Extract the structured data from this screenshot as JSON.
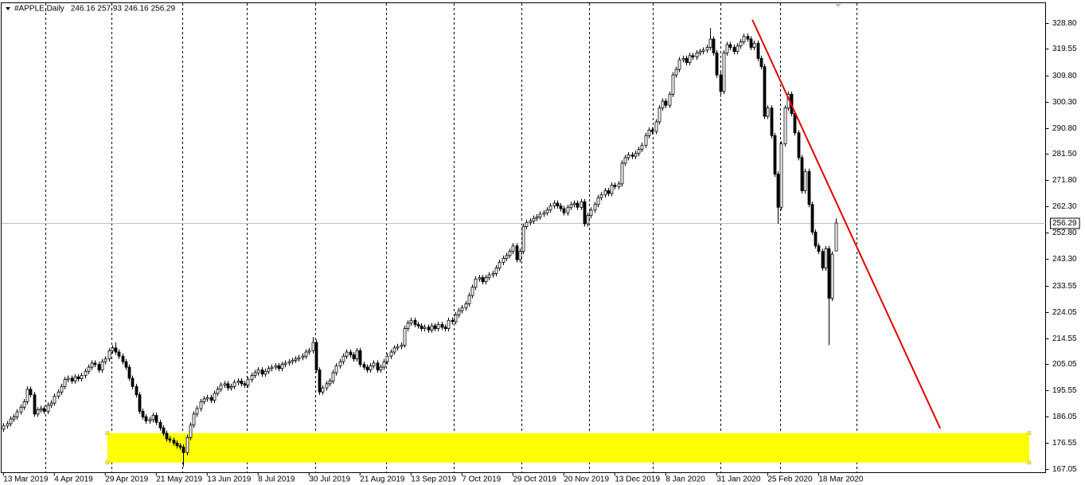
{
  "chart_data": {
    "type": "candlestick",
    "title": "#APPLE,Daily",
    "categories": [
      "13 Mar 2019",
      null,
      null,
      null,
      null,
      null,
      null,
      null,
      null,
      null,
      null,
      null,
      null,
      null,
      null,
      "4 Apr 2019",
      null,
      null,
      null,
      null,
      null,
      null,
      null,
      null,
      null,
      null,
      null,
      null,
      null,
      null,
      "29 Apr 2019",
      null,
      null,
      null,
      null,
      null,
      null,
      null,
      null,
      null,
      null,
      null,
      null,
      null,
      null,
      "21 May 2019",
      null,
      null,
      null,
      null,
      null,
      null,
      null,
      null,
      null,
      null,
      null,
      null,
      null,
      null,
      "13 Jun 2019",
      null,
      null,
      null,
      null,
      null,
      null,
      null,
      null,
      null,
      null,
      null,
      null,
      null,
      null,
      "8 Jul 2019",
      null,
      null,
      null,
      null,
      null,
      null,
      null,
      null,
      null,
      null,
      null,
      null,
      null,
      null,
      "30 Jul 2019",
      null,
      null,
      null,
      null,
      null,
      null,
      null,
      null,
      null,
      null,
      null,
      null,
      null,
      null,
      "21 Aug 2019",
      null,
      null,
      null,
      null,
      null,
      null,
      null,
      null,
      null,
      null,
      null,
      null,
      null,
      null,
      "13 Sep 2019",
      null,
      null,
      null,
      null,
      null,
      null,
      null,
      null,
      null,
      null,
      null,
      null,
      null,
      null,
      "7 Oct 2019",
      null,
      null,
      null,
      null,
      null,
      null,
      null,
      null,
      null,
      null,
      null,
      null,
      null,
      null,
      "29 Oct 2019",
      null,
      null,
      null,
      null,
      null,
      null,
      null,
      null,
      null,
      null,
      null,
      null,
      null,
      null,
      "20 Nov 2019",
      null,
      null,
      null,
      null,
      null,
      null,
      null,
      null,
      null,
      null,
      null,
      null,
      null,
      null,
      "13 Dec 2019",
      null,
      null,
      null,
      null,
      null,
      null,
      null,
      null,
      null,
      null,
      null,
      null,
      null,
      null,
      "8 Jan 2020",
      null,
      null,
      null,
      null,
      null,
      null,
      null,
      null,
      null,
      null,
      null,
      null,
      null,
      null,
      "31 Jan 2020",
      null,
      null,
      null,
      null,
      null,
      null,
      null,
      null,
      null,
      null,
      null,
      null,
      null,
      null,
      "25 Feb 2020",
      null,
      null,
      null,
      null,
      null,
      null,
      null,
      null,
      null,
      null,
      null,
      null,
      null,
      null,
      "18 Mar 2020",
      null,
      null,
      null,
      null,
      null
    ],
    "open": [
      181.5,
      182.7,
      183.5,
      185.2,
      186.0,
      187.8,
      189.5,
      191.5,
      196.0,
      194.0,
      187.0,
      188.5,
      189.0,
      188.0,
      190.2,
      191.0,
      193.5,
      195.0,
      197.0,
      199.5,
      200.0,
      199.0,
      200.5,
      199.8,
      201.0,
      202.5,
      204.0,
      205.5,
      205.0,
      203.0,
      206.0,
      207.0,
      210.0,
      211.0,
      209.5,
      208.0,
      206.0,
      204.0,
      200.0,
      197.0,
      194.0,
      188.0,
      186.0,
      184.5,
      185.0,
      186.5,
      184.0,
      182.0,
      180.0,
      178.0,
      177.5,
      176.5,
      175.5,
      175.0,
      173.0,
      178.5,
      183.0,
      187.0,
      189.0,
      191.5,
      192.5,
      193.0,
      192.0,
      194.5,
      196.0,
      197.5,
      198.0,
      196.5,
      197.0,
      198.5,
      199.0,
      198.0,
      197.5,
      199.5,
      201.0,
      202.0,
      203.0,
      201.5,
      202.5,
      203.5,
      204.0,
      204.5,
      203.5,
      205.0,
      205.5,
      206.0,
      206.5,
      207.0,
      207.5,
      208.0,
      209.5,
      210.0,
      213.0,
      203.0,
      195.0,
      196.5,
      198.0,
      199.0,
      202.0,
      204.5,
      206.0,
      208.0,
      209.5,
      208.5,
      207.0,
      210.0,
      205.0,
      204.0,
      203.0,
      204.5,
      205.5,
      203.0,
      204.0,
      206.0,
      208.0,
      209.5,
      211.0,
      211.5,
      212.0,
      218.0,
      220.0,
      221.0,
      219.5,
      219.0,
      218.0,
      218.5,
      217.5,
      219.0,
      218.0,
      219.5,
      218.5,
      218.0,
      221.0,
      220.5,
      223.0,
      224.5,
      225.5,
      227.0,
      230.0,
      233.0,
      236.0,
      236.5,
      235.0,
      236.5,
      237.5,
      238.0,
      240.0,
      242.0,
      243.5,
      244.5,
      246.0,
      248.0,
      243.0,
      246.0,
      255.0,
      256.5,
      257.0,
      258.0,
      258.5,
      259.5,
      260.0,
      261.0,
      262.5,
      263.5,
      262.5,
      261.5,
      260.0,
      262.0,
      263.0,
      263.5,
      262.0,
      264.0,
      256.0,
      259.0,
      261.0,
      263.0,
      265.5,
      266.5,
      268.0,
      267.0,
      270.0,
      269.5,
      270.5,
      278.0,
      280.0,
      281.0,
      280.5,
      281.5,
      283.0,
      284.5,
      288.0,
      290.0,
      289.5,
      293.0,
      298.0,
      300.5,
      299.0,
      303.0,
      310.0,
      312.0,
      315.5,
      316.0,
      314.5,
      317.0,
      316.5,
      318.0,
      318.5,
      319.0,
      320.0,
      323.0,
      318.0,
      310.0,
      304.0,
      318.0,
      321.0,
      320.0,
      318.5,
      320.5,
      322.0,
      324.0,
      323.0,
      320.0,
      321.5,
      316.0,
      313.0,
      295.0,
      298.0,
      288.0,
      274.0,
      262.0,
      285.0,
      298.0,
      303.0,
      296.0,
      289.0,
      280.0,
      268.0,
      275.0,
      263.0,
      253.0,
      248.0,
      246.0,
      240.0,
      247.0,
      229.0,
      246.16
    ],
    "high": [
      183.7,
      184.5,
      186.2,
      187,
      188.8,
      190.5,
      192.5,
      197,
      197,
      195,
      189.5,
      190,
      190,
      191.2,
      192,
      194.5,
      196,
      198,
      200.5,
      201,
      201,
      201.5,
      201.5,
      202,
      203.5,
      205,
      206.5,
      206.5,
      206,
      207,
      208,
      211,
      212,
      213,
      210.5,
      209,
      207,
      205,
      201,
      198,
      195,
      189,
      187,
      186,
      187.5,
      187.5,
      185,
      183,
      181,
      179,
      178.5,
      177.5,
      176.5,
      176,
      179.5,
      184,
      188,
      190,
      192.5,
      193.5,
      194,
      194,
      195.5,
      197,
      198.5,
      199,
      199,
      198,
      199.5,
      200,
      200,
      199,
      200.5,
      202,
      203,
      204,
      204,
      203.5,
      204.5,
      205,
      205.5,
      205.5,
      206,
      206.5,
      207,
      207.5,
      208,
      208.5,
      209,
      210.5,
      211,
      215,
      214,
      204,
      197.5,
      199,
      200,
      203,
      205.5,
      207,
      209,
      210.5,
      210.5,
      209.5,
      211,
      211,
      206,
      205,
      205.5,
      206.5,
      206.5,
      205,
      207,
      209,
      210.5,
      212,
      212.5,
      213,
      219,
      221,
      222,
      222,
      220.5,
      220,
      219.5,
      219.5,
      220,
      220,
      220.5,
      220.5,
      219.5,
      222,
      222,
      224,
      225.5,
      226.5,
      228,
      231,
      234,
      237,
      237.5,
      237.5,
      237.5,
      238.5,
      239,
      241,
      243,
      244.5,
      245.5,
      247,
      249,
      249,
      247,
      256,
      257.5,
      258,
      259,
      259.5,
      260.5,
      261,
      262,
      263.5,
      264.5,
      264.5,
      263.5,
      262.5,
      263,
      264,
      264.5,
      264.5,
      265,
      265,
      260,
      262,
      264,
      266.5,
      267.5,
      269,
      269,
      271,
      271,
      271.5,
      279,
      281,
      282,
      282,
      282.5,
      284,
      285.5,
      289,
      291,
      291,
      294,
      299,
      301.5,
      301.5,
      304,
      311,
      313,
      316.5,
      317,
      317,
      318,
      318,
      319,
      319.5,
      320,
      321,
      327,
      324,
      319,
      311,
      319,
      322,
      322,
      321,
      321.5,
      323,
      325,
      325,
      324,
      322.5,
      322.5,
      317,
      314,
      299,
      299,
      289,
      275,
      286,
      299,
      304,
      304,
      297,
      290,
      281,
      276,
      276,
      264,
      254,
      249,
      247,
      248,
      248,
      246,
      257.93
    ],
    "low": [
      180.5,
      181.7,
      182.5,
      184.2,
      185,
      186.8,
      188.5,
      190.5,
      193,
      186,
      186,
      187.5,
      187,
      187,
      189.2,
      190,
      192.5,
      194,
      196,
      198.5,
      198,
      198,
      198.8,
      198.8,
      200,
      201.5,
      203,
      204,
      202,
      202,
      205,
      206,
      209,
      208.5,
      207,
      205,
      203,
      199,
      196,
      193,
      187,
      185,
      183.5,
      183.5,
      184,
      183,
      181,
      179,
      177,
      176.5,
      175.5,
      174.5,
      174,
      168,
      172,
      177.5,
      182,
      186,
      188,
      190.5,
      191.5,
      191,
      191,
      193.5,
      195,
      196.5,
      195.5,
      195.5,
      196,
      197.5,
      197,
      196.5,
      196.5,
      198.5,
      200,
      201,
      200.5,
      200.5,
      201.5,
      202.5,
      203,
      202.5,
      202.5,
      204,
      204.5,
      205,
      205.5,
      206,
      206.5,
      207,
      208.5,
      209,
      202,
      194,
      194,
      195.5,
      197,
      198,
      201,
      203.5,
      205,
      207,
      207.5,
      206,
      206,
      204,
      203,
      202,
      202,
      203.5,
      202,
      202,
      203,
      205,
      207,
      208.5,
      210,
      210.5,
      211,
      217,
      219,
      218.5,
      218,
      217,
      217,
      216.5,
      216.5,
      217,
      217,
      217.5,
      217,
      217,
      219.5,
      219.5,
      222,
      223.5,
      224.5,
      226,
      229,
      232,
      235,
      234,
      234,
      235.5,
      236.5,
      237,
      239,
      241,
      242.5,
      243.5,
      245,
      242,
      242,
      245,
      254,
      255.5,
      256,
      257,
      257.5,
      258.5,
      259,
      260,
      261.5,
      261.5,
      260.5,
      259,
      259,
      261,
      262,
      261,
      261,
      255,
      255,
      258,
      260,
      262,
      264.5,
      265.5,
      266,
      266,
      268.5,
      268.5,
      269.5,
      277,
      279,
      279.5,
      279.5,
      280.5,
      282,
      283.5,
      287,
      288.5,
      288.5,
      292,
      297,
      298,
      298,
      302,
      309,
      311,
      314.5,
      313.5,
      313.5,
      315.5,
      315.5,
      317,
      317.5,
      318,
      319,
      317,
      309,
      302,
      303,
      317,
      319,
      317.5,
      317.5,
      319.5,
      321,
      322,
      319,
      319,
      315,
      312,
      294,
      294,
      287,
      273,
      256,
      261,
      284,
      297,
      295,
      288,
      279,
      267,
      267,
      262,
      252,
      247,
      245,
      239,
      239,
      212,
      228,
      246.16
    ],
    "close": [
      182.7,
      183.5,
      185.2,
      186.0,
      187.8,
      189.5,
      191.5,
      196.0,
      194.0,
      187.0,
      188.5,
      189.0,
      188.0,
      190.2,
      191.0,
      193.5,
      195.0,
      197.0,
      199.5,
      200.0,
      199.0,
      200.5,
      199.8,
      201.0,
      202.5,
      204.0,
      205.5,
      205.0,
      203.0,
      206.0,
      207.0,
      210.0,
      211.0,
      209.5,
      208.0,
      206.0,
      204.0,
      200.0,
      197.0,
      194.0,
      188.0,
      186.0,
      184.5,
      185.0,
      186.5,
      184.0,
      182.0,
      180.0,
      178.0,
      177.5,
      176.5,
      175.5,
      175.0,
      173.0,
      178.5,
      183.0,
      187.0,
      189.0,
      191.5,
      192.5,
      193.0,
      192.0,
      194.5,
      196.0,
      197.5,
      198.0,
      196.5,
      197.0,
      198.5,
      199.0,
      198.0,
      197.5,
      199.5,
      201.0,
      202.0,
      203.0,
      201.5,
      202.5,
      203.5,
      204.0,
      204.5,
      203.5,
      205.0,
      205.5,
      206.0,
      206.5,
      207.0,
      207.5,
      208.0,
      209.5,
      210.0,
      213.0,
      203.0,
      195.0,
      196.5,
      198.0,
      199.0,
      202.0,
      204.5,
      206.0,
      208.0,
      209.5,
      208.5,
      207.0,
      210.0,
      205.0,
      204.0,
      203.0,
      204.5,
      205.5,
      203.0,
      204.0,
      206.0,
      208.0,
      209.5,
      211.0,
      211.5,
      212.0,
      218.0,
      220.0,
      221.0,
      219.5,
      219.0,
      218.0,
      218.5,
      217.5,
      219.0,
      218.0,
      219.5,
      218.5,
      218.0,
      221.0,
      220.5,
      223.0,
      224.5,
      225.5,
      227.0,
      230.0,
      233.0,
      236.0,
      236.5,
      235.0,
      236.5,
      237.5,
      238.0,
      240.0,
      242.0,
      243.5,
      244.5,
      246.0,
      248.0,
      243.0,
      246.0,
      255.0,
      256.5,
      257.0,
      258.0,
      258.5,
      259.5,
      260.0,
      261.0,
      262.5,
      263.5,
      262.5,
      261.5,
      260.0,
      262.0,
      263.0,
      263.5,
      262.0,
      264.0,
      256.0,
      259.0,
      261.0,
      263.0,
      265.5,
      266.5,
      268.0,
      267.0,
      270.0,
      269.5,
      270.5,
      278.0,
      280.0,
      281.0,
      280.5,
      281.5,
      283.0,
      284.5,
      288.0,
      290.0,
      289.5,
      293.0,
      298.0,
      300.5,
      299.0,
      303.0,
      310.0,
      312.0,
      315.5,
      316.0,
      314.5,
      317.0,
      316.5,
      318.0,
      318.5,
      319.0,
      320.0,
      323.0,
      318.0,
      310.0,
      304.0,
      318.0,
      321.0,
      320.0,
      318.5,
      320.5,
      322.0,
      324.0,
      323.0,
      320.0,
      321.5,
      316.0,
      313.0,
      295.0,
      298.0,
      288.0,
      274.0,
      262.0,
      285.0,
      298.0,
      303.0,
      296.0,
      289.0,
      280.0,
      268.0,
      275.0,
      263.0,
      253.0,
      248.0,
      246.0,
      240.0,
      247.0,
      229.0,
      245.0,
      256.29
    ],
    "up_color": "#ffffff",
    "down_color": "#000000",
    "candle_edge": "#000000",
    "ylim": [
      165.75,
      336.17
    ],
    "yticks": [
      {
        "value": 167.05,
        "label": "167.05"
      },
      {
        "value": 176.55,
        "label": "176.55"
      },
      {
        "value": 186.05,
        "label": "186.05"
      },
      {
        "value": 195.55,
        "label": "195.55"
      },
      {
        "value": 205.05,
        "label": "205.05"
      },
      {
        "value": 214.55,
        "label": "214.55"
      },
      {
        "value": 224.05,
        "label": "224.05"
      },
      {
        "value": 233.55,
        "label": "233.55"
      },
      {
        "value": 243.3,
        "label": "243.30"
      },
      {
        "value": 252.8,
        "label": "252.80"
      },
      {
        "value": 262.3,
        "label": "262.30"
      },
      {
        "value": 271.8,
        "label": "271.80"
      },
      {
        "value": 281.5,
        "label": "281.50"
      },
      {
        "value": 290.8,
        "label": "290.80"
      },
      {
        "value": 300.3,
        "label": "300.30"
      },
      {
        "value": 309.8,
        "label": "309.80"
      },
      {
        "value": 319.55,
        "label": "319.55"
      },
      {
        "value": 328.8,
        "label": "328.80"
      }
    ],
    "trendline": {
      "x": [
        220.5,
        275.8
      ],
      "y": [
        330.0,
        181.8
      ],
      "color": "#e00000"
    },
    "zone": {
      "x": [
        30.6,
        302.0
      ],
      "y": [
        169.4,
        180.1
      ],
      "color": "#ffff00"
    }
  }
}
